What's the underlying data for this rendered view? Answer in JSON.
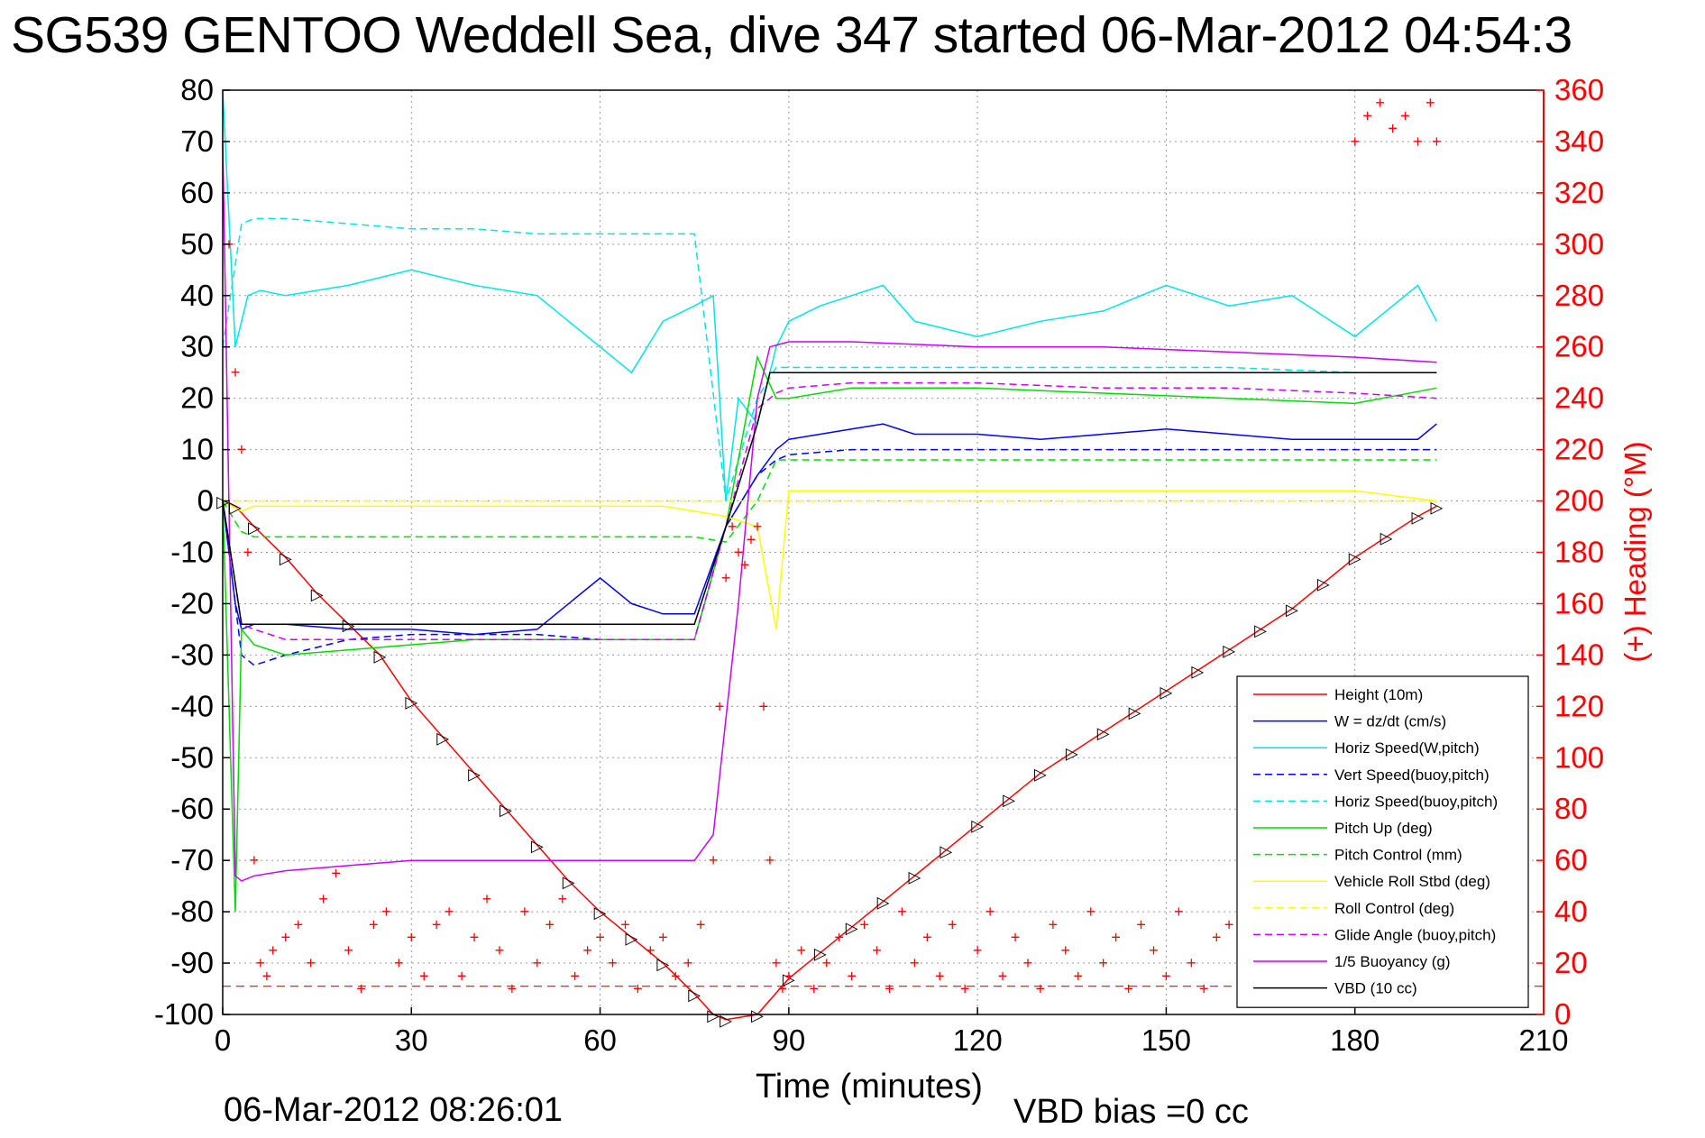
{
  "title": "SG539 GENTOO Weddell Sea, dive 347 started 06-Mar-2012 04:54:3",
  "footer": {
    "date": "06-Mar-2012 08:26:01",
    "vbd_bias": "VBD bias =0 cc"
  },
  "chart_data": {
    "type": "line",
    "title": "SG539 GENTOO Weddell Sea, dive 347 started 06-Mar-2012 04:54:3",
    "xlabel": "Time (minutes)",
    "ylabel_right": "(+) Heading (°M)",
    "xlim": [
      0,
      210
    ],
    "ylim_left": [
      -100,
      80
    ],
    "ylim_right": [
      0,
      360
    ],
    "x_ticks": [
      "0",
      "30",
      "60",
      "90",
      "120",
      "150",
      "180",
      "210"
    ],
    "y_left_ticks": [
      "80",
      "70",
      "60",
      "50",
      "40",
      "30",
      "20",
      "10",
      "0",
      "-10",
      "-20",
      "-30",
      "-40",
      "-50",
      "-60",
      "-70",
      "-80",
      "-90",
      "-100"
    ],
    "y_right_ticks": [
      "360",
      "340",
      "320",
      "300",
      "280",
      "260",
      "240",
      "220",
      "200",
      "180",
      "160",
      "140",
      "120",
      "100",
      "80",
      "60",
      "40",
      "20",
      "0"
    ],
    "grid": true,
    "legend_position": "bottom-right",
    "colors": {
      "height": "#ff0000",
      "w": "#0000ff",
      "horiz_w": "#00e5e5",
      "vert_buoy": "#0000ff",
      "horiz_buoy": "#00e5e5",
      "pitch": "#00dd00",
      "pitch_ctrl": "#00dd00",
      "roll": "#ffff00",
      "roll_ctrl": "#ffff00",
      "glide": "#cc00ff",
      "buoyancy": "#cc00ff",
      "vbd": "#000000",
      "heading": "#ff0000"
    },
    "series": [
      {
        "name": "Height (10m)",
        "style": "solid",
        "color": "#ff0000",
        "x": [
          0,
          2,
          5,
          10,
          15,
          20,
          25,
          30,
          35,
          40,
          45,
          50,
          55,
          60,
          65,
          70,
          75,
          78,
          80,
          85,
          90,
          95,
          100,
          105,
          110,
          115,
          120,
          125,
          130,
          135,
          140,
          145,
          150,
          155,
          160,
          165,
          170,
          175,
          180,
          185,
          190,
          193
        ],
        "y": [
          0,
          -1,
          -5,
          -11,
          -18,
          -24,
          -30,
          -39,
          -46,
          -53,
          -60,
          -67,
          -74,
          -80,
          -85,
          -90,
          -96,
          -100,
          -101,
          -100,
          -93,
          -88,
          -83,
          -78,
          -73,
          -68,
          -63,
          -58,
          -53,
          -49,
          -45,
          -41,
          -37,
          -33,
          -29,
          -25,
          -21,
          -16,
          -11,
          -7,
          -3,
          -1
        ]
      },
      {
        "name": "W = dz/dt (cm/s)",
        "style": "solid",
        "color": "#0000ff",
        "x": [
          0,
          2,
          3,
          5,
          10,
          20,
          30,
          40,
          50,
          55,
          60,
          65,
          70,
          75,
          80,
          85,
          88,
          90,
          95,
          100,
          105,
          110,
          120,
          130,
          140,
          150,
          160,
          170,
          180,
          190,
          193
        ],
        "y": [
          0,
          -20,
          -25,
          -24,
          -24,
          -25,
          -25,
          -26,
          -25,
          -20,
          -15,
          -20,
          -22,
          -22,
          -5,
          5,
          10,
          12,
          13,
          14,
          15,
          13,
          13,
          12,
          13,
          14,
          13,
          12,
          12,
          12,
          15
        ]
      },
      {
        "name": "Horiz Speed(W,pitch)",
        "style": "solid",
        "color": "#00e5e5",
        "x": [
          0,
          2,
          4,
          6,
          10,
          20,
          30,
          40,
          50,
          55,
          60,
          65,
          70,
          75,
          78,
          80,
          82,
          85,
          88,
          90,
          95,
          100,
          105,
          110,
          120,
          130,
          140,
          150,
          160,
          170,
          180,
          190,
          193
        ],
        "y": [
          80,
          30,
          40,
          41,
          40,
          42,
          45,
          42,
          40,
          35,
          30,
          25,
          35,
          38,
          40,
          0,
          20,
          15,
          30,
          35,
          38,
          40,
          42,
          35,
          32,
          35,
          37,
          42,
          38,
          40,
          32,
          42,
          35
        ]
      },
      {
        "name": "Vert Speed(buoy,pitch)",
        "style": "dashed",
        "color": "#0000ff",
        "x": [
          0,
          3,
          5,
          10,
          20,
          30,
          40,
          50,
          60,
          70,
          75,
          80,
          85,
          88,
          90,
          100,
          120,
          140,
          160,
          180,
          193
        ],
        "y": [
          0,
          -30,
          -32,
          -30,
          -27,
          -26,
          -26,
          -26,
          -27,
          -27,
          -27,
          -5,
          5,
          8,
          9,
          10,
          10,
          10,
          10,
          10,
          10
        ]
      },
      {
        "name": "Horiz Speed(buoy,pitch)",
        "style": "dashed",
        "color": "#00e5e5",
        "x": [
          0,
          3,
          5,
          10,
          20,
          30,
          40,
          50,
          60,
          70,
          75,
          80,
          85,
          88,
          90,
          100,
          120,
          140,
          160,
          180,
          193
        ],
        "y": [
          30,
          54,
          55,
          55,
          54,
          53,
          53,
          52,
          52,
          52,
          52,
          0,
          20,
          26,
          26,
          26,
          26,
          26,
          26,
          25,
          25
        ]
      },
      {
        "name": "Pitch Up (deg)",
        "style": "solid",
        "color": "#00dd00",
        "x": [
          0,
          2,
          3,
          5,
          10,
          20,
          30,
          40,
          50,
          60,
          70,
          75,
          80,
          85,
          88,
          90,
          100,
          120,
          140,
          160,
          180,
          193
        ],
        "y": [
          0,
          -80,
          -25,
          -28,
          -30,
          -29,
          -28,
          -27,
          -27,
          -27,
          -27,
          -27,
          -5,
          28,
          20,
          20,
          22,
          22,
          21,
          20,
          19,
          22
        ]
      },
      {
        "name": "Pitch Control (mm)",
        "style": "dashed",
        "color": "#00dd00",
        "x": [
          0,
          3,
          5,
          10,
          20,
          30,
          40,
          50,
          60,
          70,
          75,
          80,
          85,
          88,
          90,
          100,
          120,
          140,
          160,
          180,
          193
        ],
        "y": [
          0,
          -6,
          -7,
          -7,
          -7,
          -7,
          -7,
          -7,
          -7,
          -7,
          -7,
          -8,
          0,
          8,
          8,
          8,
          8,
          8,
          8,
          8,
          8
        ]
      },
      {
        "name": "Vehicle Roll Stbd (deg)",
        "style": "solid",
        "color": "#ffff00",
        "x": [
          0,
          3,
          5,
          10,
          20,
          30,
          40,
          50,
          60,
          70,
          75,
          80,
          85,
          88,
          90,
          100,
          120,
          140,
          160,
          180,
          193
        ],
        "y": [
          0,
          -2,
          -1,
          -1,
          -1,
          -1,
          -1,
          -1,
          -1,
          -1,
          -2,
          -3,
          -5,
          -25,
          2,
          2,
          2,
          2,
          2,
          2,
          0
        ]
      },
      {
        "name": "Roll Control (deg)",
        "style": "dashed",
        "color": "#ffff00",
        "x": [
          0,
          3,
          5,
          10,
          20,
          30,
          40,
          50,
          60,
          70,
          75,
          80,
          85,
          88,
          90,
          100,
          120,
          140,
          160,
          180,
          193
        ],
        "y": [
          0,
          0,
          0,
          0,
          0,
          0,
          0,
          0,
          0,
          0,
          0,
          0,
          0,
          0,
          0,
          0,
          0,
          0,
          0,
          0,
          0
        ]
      },
      {
        "name": "Glide Angle (buoy,pitch)",
        "style": "dashed",
        "color": "#cc00ff",
        "x": [
          0,
          3,
          5,
          10,
          20,
          30,
          40,
          50,
          60,
          70,
          75,
          80,
          85,
          88,
          90,
          100,
          120,
          140,
          160,
          180,
          193
        ],
        "y": [
          0,
          -24,
          -25,
          -27,
          -27,
          -27,
          -27,
          -27,
          -27,
          -27,
          -27,
          -5,
          18,
          21,
          22,
          23,
          23,
          22,
          22,
          21,
          20
        ]
      },
      {
        "name": "1/5 Buoyancy (g)",
        "style": "solid",
        "color": "#cc00ff",
        "x": [
          0,
          2,
          3,
          5,
          10,
          20,
          30,
          40,
          50,
          60,
          70,
          75,
          78,
          82,
          85,
          87,
          90,
          100,
          120,
          140,
          160,
          180,
          193
        ],
        "y": [
          70,
          -73,
          -74,
          -73,
          -72,
          -71,
          -70,
          -70,
          -70,
          -70,
          -70,
          -70,
          -65,
          -20,
          20,
          30,
          31,
          31,
          30,
          30,
          29,
          28,
          27
        ]
      },
      {
        "name": "VBD (10 cc)",
        "style": "solid",
        "color": "#000000",
        "x": [
          0,
          3,
          5,
          10,
          20,
          30,
          40,
          50,
          60,
          70,
          75,
          80,
          85,
          87,
          90,
          100,
          120,
          140,
          160,
          180,
          193
        ],
        "y": [
          0,
          -24,
          -24,
          -24,
          -24,
          -24,
          -24,
          -24,
          -24,
          -24,
          -24,
          -5,
          15,
          25,
          25,
          25,
          25,
          25,
          25,
          25,
          25
        ]
      }
    ],
    "heading": {
      "name": "(+) Heading (°M)",
      "marker": "+",
      "color": "#ff0000",
      "x": [
        1,
        2,
        3,
        4,
        5,
        6,
        7,
        8,
        10,
        12,
        14,
        16,
        18,
        20,
        22,
        24,
        26,
        28,
        30,
        32,
        34,
        36,
        38,
        40,
        42,
        44,
        46,
        48,
        50,
        52,
        54,
        56,
        58,
        60,
        62,
        64,
        66,
        68,
        70,
        72,
        74,
        76,
        78,
        79,
        80,
        81,
        82,
        83,
        84,
        85,
        86,
        87,
        88,
        89,
        90,
        92,
        94,
        96,
        98,
        100,
        102,
        104,
        106,
        108,
        110,
        112,
        114,
        116,
        118,
        120,
        122,
        124,
        126,
        128,
        130,
        132,
        134,
        136,
        138,
        140,
        142,
        144,
        146,
        148,
        150,
        152,
        154,
        156,
        158,
        160,
        162,
        164,
        166,
        168,
        170,
        172,
        174,
        176,
        178,
        180,
        182,
        184,
        186,
        188,
        190,
        192,
        193
      ],
      "y": [
        300,
        250,
        220,
        180,
        60,
        20,
        15,
        25,
        30,
        35,
        20,
        45,
        55,
        25,
        10,
        35,
        40,
        20,
        30,
        15,
        35,
        40,
        15,
        30,
        45,
        25,
        10,
        40,
        20,
        35,
        45,
        15,
        25,
        30,
        20,
        35,
        10,
        25,
        30,
        15,
        20,
        35,
        60,
        120,
        170,
        190,
        180,
        175,
        185,
        190,
        120,
        60,
        20,
        10,
        15,
        25,
        10,
        20,
        30,
        15,
        35,
        25,
        10,
        40,
        20,
        30,
        15,
        35,
        10,
        25,
        40,
        15,
        30,
        20,
        10,
        35,
        25,
        15,
        40,
        20,
        30,
        10,
        35,
        25,
        15,
        40,
        20,
        10,
        30,
        35,
        15,
        25,
        40,
        20,
        10,
        30,
        15,
        35,
        25,
        340,
        350,
        355,
        345,
        350,
        340,
        355,
        340
      ]
    }
  },
  "legend": [
    {
      "label": "Height (10m)",
      "color": "#ff0000",
      "style": "solid"
    },
    {
      "label": "W = dz/dt (cm/s)",
      "color": "#0000ff",
      "style": "solid"
    },
    {
      "label": "Horiz Speed(W,pitch)",
      "color": "#00e5e5",
      "style": "solid"
    },
    {
      "label": "Vert Speed(buoy,pitch)",
      "color": "#0000ff",
      "style": "dashed"
    },
    {
      "label": "Horiz Speed(buoy,pitch)",
      "color": "#00e5e5",
      "style": "dashed"
    },
    {
      "label": "Pitch Up (deg)",
      "color": "#00dd00",
      "style": "solid"
    },
    {
      "label": "Pitch Control (mm)",
      "color": "#00dd00",
      "style": "dashed"
    },
    {
      "label": "Vehicle Roll Stbd (deg)",
      "color": "#ffff00",
      "style": "solid"
    },
    {
      "label": "Roll Control (deg)",
      "color": "#ffff00",
      "style": "dashed"
    },
    {
      "label": "Glide Angle (buoy,pitch)",
      "color": "#cc00ff",
      "style": "dashed"
    },
    {
      "label": "1/5 Buoyancy (g)",
      "color": "#cc00ff",
      "style": "solid"
    },
    {
      "label": "VBD (10 cc)",
      "color": "#000000",
      "style": "solid"
    }
  ]
}
